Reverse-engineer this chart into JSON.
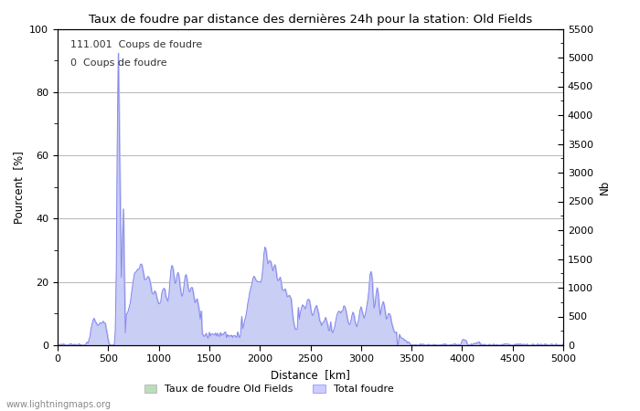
{
  "title": "Taux de foudre par distance des dernières 24h pour la station: Old Fields",
  "xlabel": "Distance  [km]",
  "ylabel_left": "Pourcent  [%]",
  "ylabel_right": "Nb",
  "annotation_line1": "111.001  Coups de foudre",
  "annotation_line2": "0  Coups de foudre",
  "watermark": "www.lightningmaps.org",
  "legend_green": "Taux de foudre Old Fields",
  "legend_blue": "Total foudre",
  "xlim": [
    0,
    5000
  ],
  "ylim_left": [
    0,
    100
  ],
  "ylim_right": [
    0,
    5500
  ],
  "xticks": [
    0,
    500,
    1000,
    1500,
    2000,
    2500,
    3000,
    3500,
    4000,
    4500,
    5000
  ],
  "yticks_left": [
    0,
    20,
    40,
    60,
    80,
    100
  ],
  "yticks_right": [
    0,
    500,
    1000,
    1500,
    2000,
    2500,
    3000,
    3500,
    4000,
    4500,
    5000,
    5500
  ],
  "line_color": "#8888ee",
  "fill_color": "#ccccff",
  "green_fill_color": "#bbddbb",
  "background_color": "#ffffff",
  "grid_color": "#bbbbbb",
  "tick_color": "#555555",
  "label_color": "#333333"
}
